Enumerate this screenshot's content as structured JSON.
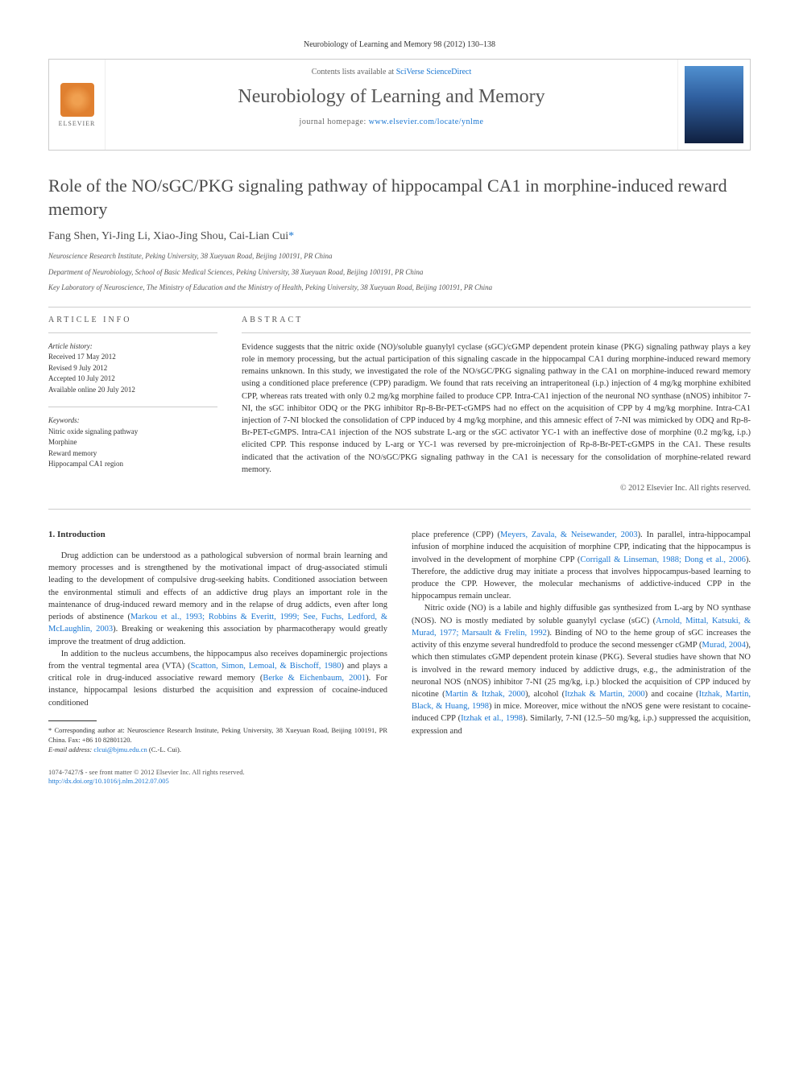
{
  "citation": "Neurobiology of Learning and Memory 98 (2012) 130–138",
  "header": {
    "contents_prefix": "Contents lists available at ",
    "contents_link": "SciVerse ScienceDirect",
    "journal": "Neurobiology of Learning and Memory",
    "homepage_prefix": "journal homepage: ",
    "homepage_url": "www.elsevier.com/locate/ynlme",
    "elsevier_label": "ELSEVIER"
  },
  "title": "Role of the NO/sGC/PKG signaling pathway of hippocampal CA1 in morphine-induced reward memory",
  "authors": "Fang Shen, Yi-Jing Li, Xiao-Jing Shou, Cai-Lian Cui",
  "corr_marker": "*",
  "affiliations": [
    "Neuroscience Research Institute, Peking University, 38 Xueyuan Road, Beijing 100191, PR China",
    "Department of Neurobiology, School of Basic Medical Sciences, Peking University, 38 Xueyuan Road, Beijing 100191, PR China",
    "Key Laboratory of Neuroscience, The Ministry of Education and the Ministry of Health, Peking University, 38 Xueyuan Road, Beijing 100191, PR China"
  ],
  "article_info": {
    "header": "ARTICLE INFO",
    "history_label": "Article history:",
    "history": [
      "Received 17 May 2012",
      "Revised 9 July 2012",
      "Accepted 10 July 2012",
      "Available online 20 July 2012"
    ],
    "keywords_label": "Keywords:",
    "keywords": [
      "Nitric oxide signaling pathway",
      "Morphine",
      "Reward memory",
      "Hippocampal CA1 region"
    ]
  },
  "abstract": {
    "header": "ABSTRACT",
    "text": "Evidence suggests that the nitric oxide (NO)/soluble guanylyl cyclase (sGC)/cGMP dependent protein kinase (PKG) signaling pathway plays a key role in memory processing, but the actual participation of this signaling cascade in the hippocampal CA1 during morphine-induced reward memory remains unknown. In this study, we investigated the role of the NO/sGC/PKG signaling pathway in the CA1 on morphine-induced reward memory using a conditioned place preference (CPP) paradigm. We found that rats receiving an intraperitoneal (i.p.) injection of 4 mg/kg morphine exhibited CPP, whereas rats treated with only 0.2 mg/kg morphine failed to produce CPP. Intra-CA1 injection of the neuronal NO synthase (nNOS) inhibitor 7-NI, the sGC inhibitor ODQ or the PKG inhibitor Rp-8-Br-PET-cGMPS had no effect on the acquisition of CPP by 4 mg/kg morphine. Intra-CA1 injection of 7-NI blocked the consolidation of CPP induced by 4 mg/kg morphine, and this amnesic effect of 7-NI was mimicked by ODQ and Rp-8-Br-PET-cGMPS. Intra-CA1 injection of the NOS substrate L-arg or the sGC activator YC-1 with an ineffective dose of morphine (0.2 mg/kg, i.p.) elicited CPP. This response induced by L-arg or YC-1 was reversed by pre-microinjection of Rp-8-Br-PET-cGMPS in the CA1. These results indicated that the activation of the NO/sGC/PKG signaling pathway in the CA1 is necessary for the consolidation of morphine-related reward memory.",
    "copyright": "© 2012 Elsevier Inc. All rights reserved."
  },
  "body": {
    "intro_header": "1. Introduction",
    "left_paragraphs": [
      "Drug addiction can be understood as a pathological subversion of normal brain learning and memory processes and is strengthened by the motivational impact of drug-associated stimuli leading to the development of compulsive drug-seeking habits. Conditioned association between the environmental stimuli and effects of an addictive drug plays an important role in the maintenance of drug-induced reward memory and in the relapse of drug addicts, even after long periods of abstinence (",
      "). Breaking or weakening this association by pharmacotherapy would greatly improve the treatment of drug addiction.",
      "In addition to the nucleus accumbens, the hippocampus also receives dopaminergic projections from the ventral tegmental area (VTA) (",
      ") and plays a critical role in drug-induced associative reward memory (",
      "). For instance, hippocampal lesions disturbed the acquisition and expression of cocaine-induced conditioned"
    ],
    "left_refs": [
      "Markou et al., 1993; Robbins & Everitt, 1999; See, Fuchs, Ledford, & McLaughlin, 2003",
      "Scatton, Simon, Lemoal, & Bischoff, 1980",
      "Berke & Eichenbaum, 2001"
    ],
    "right_paragraphs": [
      "place preference (CPP) (",
      "). In parallel, intra-hippocampal infusion of morphine induced the acquisition of morphine CPP, indicating that the hippocampus is involved in the development of morphine CPP (",
      "). Therefore, the addictive drug may initiate a process that involves hippocampus-based learning to produce the CPP. However, the molecular mechanisms of addictive-induced CPP in the hippocampus remain unclear.",
      "Nitric oxide (NO) is a labile and highly diffusible gas synthesized from L-arg by NO synthase (NOS). NO is mostly mediated by soluble guanylyl cyclase (sGC) (",
      "). Binding of NO to the heme group of sGC increases the activity of this enzyme several hundredfold to produce the second messenger cGMP (",
      "), which then stimulates cGMP dependent protein kinase (PKG). Several studies have shown that NO is involved in the reward memory induced by addictive drugs, e.g., the administration of the neuronal NOS (nNOS) inhibitor 7-NI (25 mg/kg, i.p.) blocked the acquisition of CPP induced by nicotine (",
      "), alcohol (",
      ") and cocaine (",
      ") in mice. Moreover, mice without the nNOS gene were resistant to cocaine-induced CPP (",
      "). Similarly, 7-NI (12.5–50 mg/kg, i.p.) suppressed the acquisition, expression and"
    ],
    "right_refs": [
      "Meyers, Zavala, & Neisewander, 2003",
      "Corrigall & Linseman, 1988; Dong et al., 2006",
      "Arnold, Mittal, Katsuki, & Murad, 1977; Marsault & Frelin, 1992",
      "Murad, 2004",
      "Martin & Itzhak, 2000",
      "Itzhak & Martin, 2000",
      "Itzhak, Martin, Black, & Huang, 1998",
      "Itzhak et al., 1998"
    ]
  },
  "footnote": {
    "corr_label": "* Corresponding author at: Neuroscience Research Institute, Peking University, 38 Xueyuan Road, Beijing 100191, PR China. Fax: +86 10 82801120.",
    "email_label": "E-mail address: ",
    "email": "clcui@bjmu.edu.cn",
    "email_suffix": " (C.-L. Cui)."
  },
  "footer": {
    "line1": "1074-7427/$ - see front matter © 2012 Elsevier Inc. All rights reserved.",
    "doi": "http://dx.doi.org/10.1016/j.nlm.2012.07.005"
  }
}
